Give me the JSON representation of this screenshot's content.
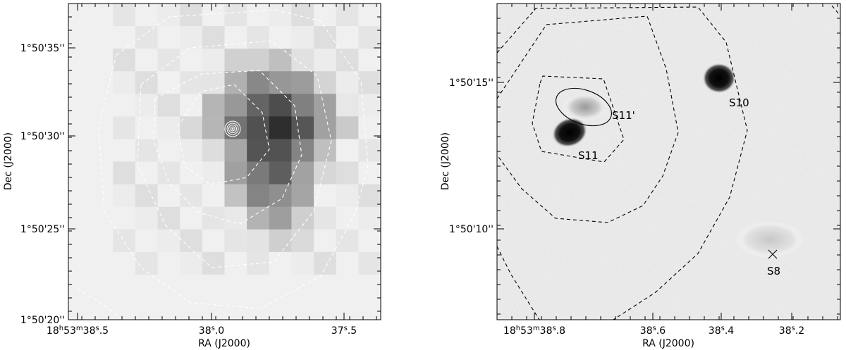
{
  "panels": [
    {
      "xlabel": "RA (J2000)",
      "ylabel": "Dec (J2000)",
      "xticks": [
        {
          "deg": "18",
          "min": "53",
          "sec": "38",
          "frac": "5"
        },
        {
          "deg": "",
          "min": "",
          "sec": "38",
          "frac": "0"
        },
        {
          "deg": "",
          "min": "",
          "sec": "37",
          "frac": "5"
        }
      ],
      "yticks": [
        "1°50'35''",
        "1°50'30''",
        "1°50'25''",
        "1°50'20''"
      ]
    },
    {
      "xlabel": "RA (J2000)",
      "ylabel": "Dec (J2000)",
      "xticks": [
        {
          "deg": "18",
          "min": "53",
          "sec": "38",
          "frac": "8"
        },
        {
          "deg": "",
          "min": "",
          "sec": "38",
          "frac": "6"
        },
        {
          "deg": "",
          "min": "",
          "sec": "38",
          "frac": "4"
        },
        {
          "deg": "",
          "min": "",
          "sec": "38",
          "frac": "2"
        }
      ],
      "yticks": [
        "1°50'15''",
        "1°50'10''"
      ],
      "sources": [
        "S11'",
        "S11",
        "S10",
        "S8"
      ]
    }
  ]
}
